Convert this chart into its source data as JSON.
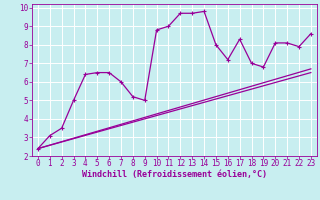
{
  "xlabel": "Windchill (Refroidissement éolien,°C)",
  "bg_color": "#c8eef0",
  "line_color": "#990099",
  "grid_color": "#ffffff",
  "spine_color": "#7777aa",
  "xlim": [
    -0.5,
    23.5
  ],
  "ylim": [
    2,
    10.2
  ],
  "xticks": [
    0,
    1,
    2,
    3,
    4,
    5,
    6,
    7,
    8,
    9,
    10,
    11,
    12,
    13,
    14,
    15,
    16,
    17,
    18,
    19,
    20,
    21,
    22,
    23
  ],
  "yticks": [
    2,
    3,
    4,
    5,
    6,
    7,
    8,
    9,
    10
  ],
  "series1_x": [
    0,
    1,
    2,
    3,
    4,
    5,
    6,
    7,
    8,
    9,
    10,
    11,
    12,
    13,
    14,
    15,
    16,
    17,
    18,
    19,
    20,
    21,
    22,
    23
  ],
  "series1_y": [
    2.4,
    3.1,
    3.5,
    5.0,
    6.4,
    6.5,
    6.5,
    6.0,
    5.2,
    5.0,
    8.8,
    9.0,
    9.7,
    9.7,
    9.8,
    8.0,
    7.2,
    8.3,
    7.0,
    6.8,
    8.1,
    8.1,
    7.9,
    8.6
  ],
  "series2_x": [
    0,
    23
  ],
  "series2_y": [
    2.4,
    6.5
  ],
  "series3_x": [
    0,
    23
  ],
  "series3_y": [
    2.4,
    6.7
  ],
  "tick_fontsize": 5.5,
  "xlabel_fontsize": 6.0
}
